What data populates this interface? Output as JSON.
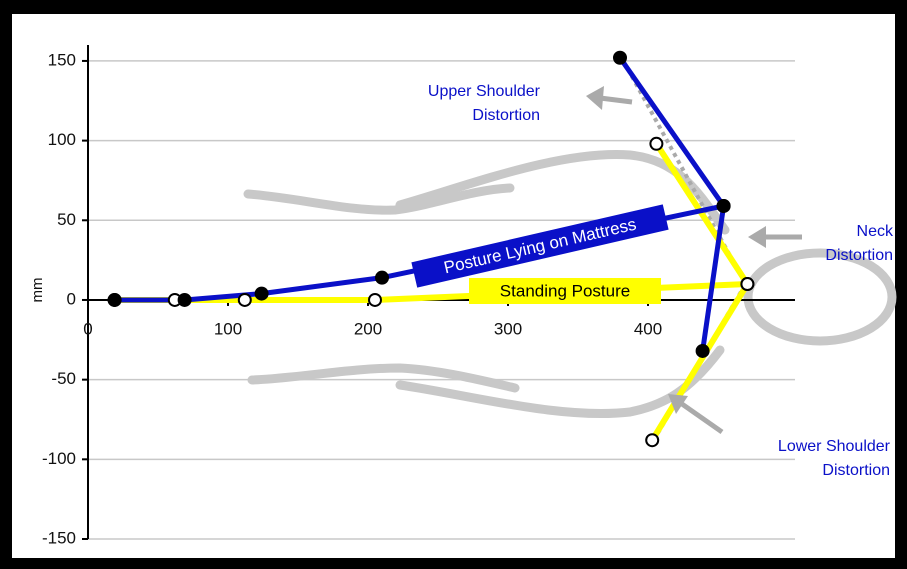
{
  "chart_data": {
    "type": "line",
    "y_label": "mm",
    "xlim": [
      0,
      505
    ],
    "ylim": [
      -150,
      160
    ],
    "xticks": [
      0,
      100,
      200,
      300,
      400
    ],
    "yticks": [
      150,
      100,
      50,
      0,
      -50,
      -100,
      -150
    ],
    "grid": true,
    "series": [
      {
        "name": "Standing Posture",
        "color": "#ffff00",
        "marker": "hollow",
        "x": [
          19,
          62,
          112,
          205,
          471,
          null,
          406,
          471,
          403
        ],
        "values": [
          0,
          0,
          0,
          0,
          10,
          null,
          98,
          10,
          -88
        ]
      },
      {
        "name": "Posture Lying on Mattress",
        "color": "#0a10c8",
        "marker": "filled",
        "x": [
          19,
          69,
          124,
          210,
          454,
          380,
          null,
          454,
          439
        ],
        "values": [
          0,
          0,
          4,
          14,
          59,
          152,
          null,
          59,
          -32
        ]
      }
    ],
    "annotations": [
      [
        "Upper Shoulder",
        "Distortion"
      ],
      [
        "Neck",
        "Distortion"
      ],
      [
        "Lower Shoulder",
        "Distortion"
      ]
    ]
  }
}
